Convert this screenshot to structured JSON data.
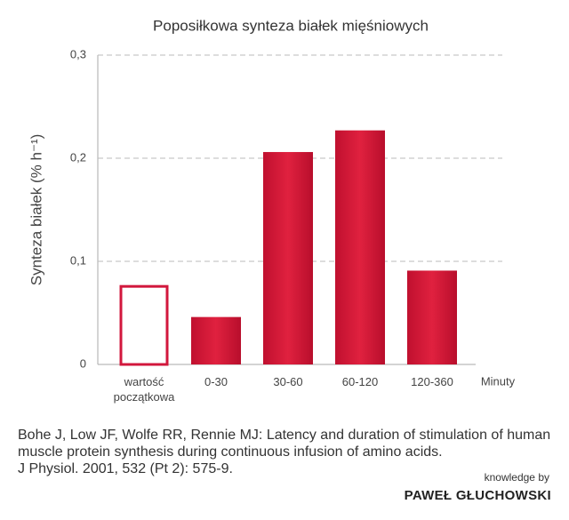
{
  "chart_data": {
    "type": "bar",
    "title": "Poposiłkowa synteza białek mięśniowych",
    "ylabel": "Synteza białek (% h⁻¹)",
    "xlabel": "Minuty",
    "categories": [
      "wartość początkowa",
      "0-30",
      "30-60",
      "60-120",
      "120-360"
    ],
    "values": [
      0.077,
      0.046,
      0.206,
      0.227,
      0.091
    ],
    "bar_styles": [
      "outline",
      "fill",
      "fill",
      "fill",
      "fill"
    ],
    "color": "#d2173c",
    "ylim": [
      0,
      0.3
    ],
    "yticks": [
      0,
      {
        "value": 0.1,
        "label": "0,1"
      },
      {
        "value": 0.2,
        "label": "0,2"
      },
      {
        "value": 0.3,
        "label": "0,3"
      }
    ],
    "grid": true
  },
  "source": [
    "Bohe J, Low JF, Wolfe RR, Rennie MJ: Latency and duration of stimulation of human muscle protein synthesis during continuous infusion of amino acids.",
    "J Physiol. 2001, 532 (Pt 2): 575-9."
  ],
  "branding": {
    "tagline": "knowledge by",
    "name": "PAWEŁ GŁUCHOWSKI"
  }
}
